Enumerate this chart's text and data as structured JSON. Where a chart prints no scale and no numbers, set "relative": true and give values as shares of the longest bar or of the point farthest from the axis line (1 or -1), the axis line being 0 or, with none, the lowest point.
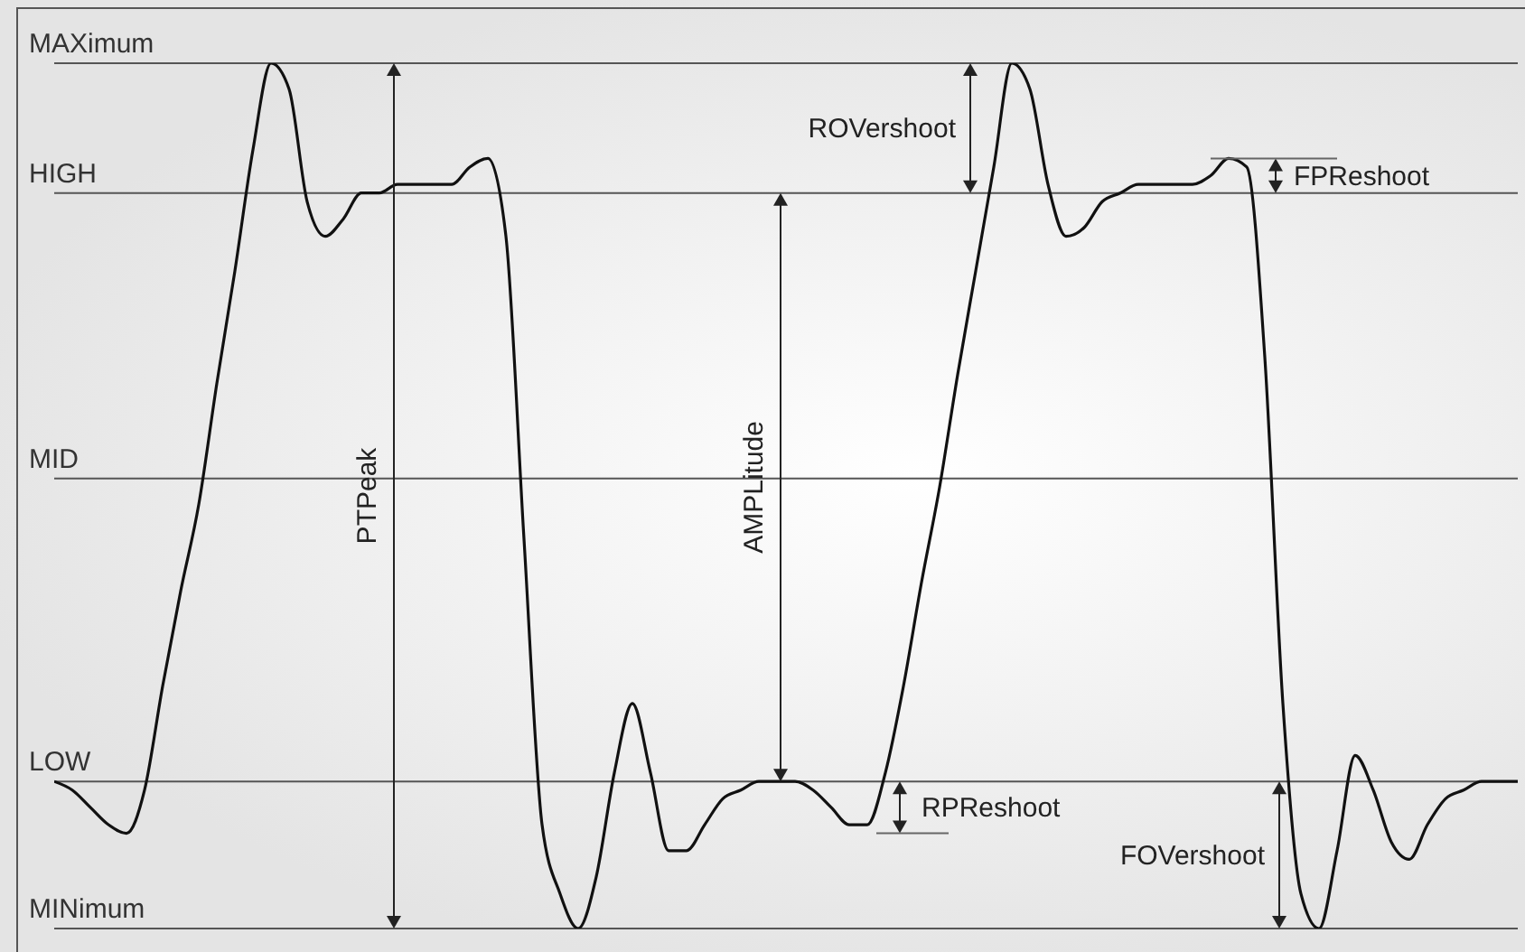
{
  "chart_data": {
    "type": "line",
    "relative": true,
    "categories": [
      null,
      null,
      null,
      null,
      null,
      null,
      null,
      null,
      null,
      null,
      null,
      null,
      null,
      null,
      null,
      null,
      null,
      null,
      null,
      null,
      null,
      null,
      null,
      null,
      null,
      null,
      null,
      null,
      null,
      null,
      null,
      null,
      null,
      null,
      null,
      null,
      null,
      null,
      null,
      null,
      null,
      null,
      null,
      null,
      null,
      null,
      null,
      null,
      null,
      null,
      null,
      null,
      null,
      null,
      null,
      null,
      null,
      null,
      null,
      null,
      null,
      null,
      null,
      null,
      null,
      null,
      null,
      null,
      null,
      null,
      null,
      null,
      null,
      null,
      null,
      null,
      null,
      null,
      null,
      null,
      null,
      null
    ],
    "series": [
      {
        "color": "#111111",
        "values": [
          0.17,
          0.16,
          0.14,
          0.12,
          0.11,
          0.16,
          0.28,
          0.39,
          0.49,
          0.63,
          0.76,
          0.9,
          1,
          0.97,
          0.84,
          0.8,
          0.82,
          0.85,
          0.85,
          0.86,
          0.86,
          0.86,
          0.86,
          0.88,
          0.89,
          0.8,
          0.45,
          0.12,
          0.04,
          0,
          0.06,
          0.18,
          0.26,
          0.18,
          0.09,
          0.09,
          0.12,
          0.15,
          0.16,
          0.17,
          0.17,
          0.17,
          0.16,
          0.14,
          0.12,
          0.12,
          0.18,
          0.28,
          0.4,
          0.51,
          0.64,
          0.76,
          0.88,
          1,
          0.97,
          0.86,
          0.8,
          0.81,
          0.84,
          0.85,
          0.86,
          0.86,
          0.86,
          0.86,
          0.87,
          0.89,
          0.88,
          0.66,
          0.26,
          0.04,
          0,
          0.09,
          0.2,
          0.16,
          0.1,
          0.08,
          0.12,
          0.15,
          0.16,
          0.17,
          0.17,
          0.17
        ]
      }
    ],
    "ref_lines": [
      {
        "axis": "y",
        "value": 1,
        "label": "MAXimum"
      },
      {
        "axis": "y",
        "value": 0.85,
        "label": "HIGH"
      },
      {
        "axis": "y",
        "value": 0.52,
        "label": "MID"
      },
      {
        "axis": "y",
        "value": 0.17,
        "label": "LOW"
      },
      {
        "axis": "y",
        "value": 0,
        "label": "MINimum"
      }
    ],
    "annotations": [
      "PTPeak",
      "AMPLitude",
      "ROVershoot",
      "FPReshoot",
      "RPReshoot",
      "FOVershoot"
    ],
    "grid": false,
    "legend": false,
    "marker": "none",
    "line_style": "solid"
  }
}
